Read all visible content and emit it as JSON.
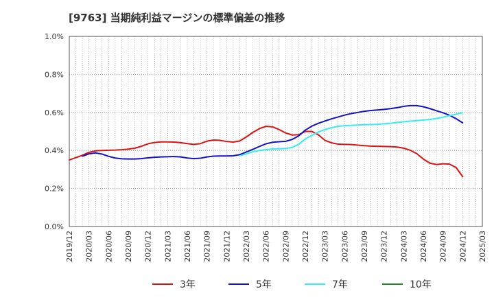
{
  "chart_data": {
    "type": "line",
    "title": "[9763]  当期純利益マージンの標準偏差の推移",
    "xlabel": "",
    "ylabel": "",
    "ylim": [
      0,
      1.0
    ],
    "y_ticks": [
      "0.0%",
      "0.2%",
      "0.4%",
      "0.6%",
      "0.8%",
      "1.0%"
    ],
    "y_tick_values": [
      0,
      0.2,
      0.4,
      0.6,
      0.8,
      1.0
    ],
    "x_ticks": [
      "2019/12",
      "2020/03",
      "2020/06",
      "2020/09",
      "2020/12",
      "2021/03",
      "2021/06",
      "2021/09",
      "2021/12",
      "2022/03",
      "2022/06",
      "2022/09",
      "2022/12",
      "2023/03",
      "2023/06",
      "2023/09",
      "2023/12",
      "2024/03",
      "2024/06",
      "2024/09",
      "2024/12",
      "2025/03"
    ],
    "grid": true,
    "legend_position": "bottom",
    "series": [
      {
        "name": "3年",
        "color": "#dd1111",
        "points": [
          [
            "2019/12",
            0.35
          ],
          [
            "2020/01",
            0.362
          ],
          [
            "2020/02",
            0.375
          ],
          [
            "2020/03",
            0.39
          ],
          [
            "2020/04",
            0.398
          ],
          [
            "2020/05",
            0.4
          ],
          [
            "2020/06",
            0.401
          ],
          [
            "2020/07",
            0.402
          ],
          [
            "2020/08",
            0.404
          ],
          [
            "2020/09",
            0.407
          ],
          [
            "2020/10",
            0.412
          ],
          [
            "2020/11",
            0.422
          ],
          [
            "2020/12",
            0.435
          ],
          [
            "2021/01",
            0.442
          ],
          [
            "2021/02",
            0.445
          ],
          [
            "2021/03",
            0.445
          ],
          [
            "2021/04",
            0.444
          ],
          [
            "2021/05",
            0.441
          ],
          [
            "2021/06",
            0.436
          ],
          [
            "2021/07",
            0.432
          ],
          [
            "2021/08",
            0.436
          ],
          [
            "2021/09",
            0.449
          ],
          [
            "2021/10",
            0.455
          ],
          [
            "2021/11",
            0.453
          ],
          [
            "2021/12",
            0.447
          ],
          [
            "2022/01",
            0.444
          ],
          [
            "2022/02",
            0.45
          ],
          [
            "2022/03",
            0.471
          ],
          [
            "2022/04",
            0.495
          ],
          [
            "2022/05",
            0.515
          ],
          [
            "2022/06",
            0.527
          ],
          [
            "2022/07",
            0.524
          ],
          [
            "2022/08",
            0.51
          ],
          [
            "2022/09",
            0.492
          ],
          [
            "2022/10",
            0.481
          ],
          [
            "2022/11",
            0.483
          ],
          [
            "2022/12",
            0.5
          ],
          [
            "2023/01",
            0.5
          ],
          [
            "2023/02",
            0.482
          ],
          [
            "2023/03",
            0.453
          ],
          [
            "2023/04",
            0.44
          ],
          [
            "2023/05",
            0.433
          ],
          [
            "2023/06",
            0.432
          ],
          [
            "2023/07",
            0.431
          ],
          [
            "2023/08",
            0.428
          ],
          [
            "2023/09",
            0.425
          ],
          [
            "2023/10",
            0.423
          ],
          [
            "2023/11",
            0.422
          ],
          [
            "2023/12",
            0.421
          ],
          [
            "2024/01",
            0.42
          ],
          [
            "2024/02",
            0.418
          ],
          [
            "2024/03",
            0.412
          ],
          [
            "2024/04",
            0.401
          ],
          [
            "2024/05",
            0.383
          ],
          [
            "2024/06",
            0.355
          ],
          [
            "2024/07",
            0.333
          ],
          [
            "2024/08",
            0.326
          ],
          [
            "2024/09",
            0.33
          ],
          [
            "2024/10",
            0.328
          ],
          [
            "2024/11",
            0.31
          ],
          [
            "2024/12",
            0.262
          ]
        ]
      },
      {
        "name": "5年",
        "color": "#1111cc",
        "points": [
          [
            "2020/02",
            0.37
          ],
          [
            "2020/03",
            0.382
          ],
          [
            "2020/04",
            0.387
          ],
          [
            "2020/05",
            0.381
          ],
          [
            "2020/06",
            0.369
          ],
          [
            "2020/07",
            0.36
          ],
          [
            "2020/08",
            0.356
          ],
          [
            "2020/09",
            0.355
          ],
          [
            "2020/10",
            0.355
          ],
          [
            "2020/11",
            0.357
          ],
          [
            "2020/12",
            0.361
          ],
          [
            "2021/01",
            0.364
          ],
          [
            "2021/02",
            0.366
          ],
          [
            "2021/03",
            0.367
          ],
          [
            "2021/04",
            0.368
          ],
          [
            "2021/05",
            0.366
          ],
          [
            "2021/06",
            0.36
          ],
          [
            "2021/07",
            0.357
          ],
          [
            "2021/08",
            0.359
          ],
          [
            "2021/09",
            0.366
          ],
          [
            "2021/10",
            0.37
          ],
          [
            "2021/11",
            0.371
          ],
          [
            "2021/12",
            0.371
          ],
          [
            "2022/01",
            0.372
          ],
          [
            "2022/02",
            0.378
          ],
          [
            "2022/03",
            0.392
          ],
          [
            "2022/04",
            0.406
          ],
          [
            "2022/05",
            0.421
          ],
          [
            "2022/06",
            0.435
          ],
          [
            "2022/07",
            0.443
          ],
          [
            "2022/08",
            0.446
          ],
          [
            "2022/09",
            0.448
          ],
          [
            "2022/10",
            0.458
          ],
          [
            "2022/11",
            0.477
          ],
          [
            "2022/12",
            0.507
          ],
          [
            "2023/01",
            0.528
          ],
          [
            "2023/02",
            0.543
          ],
          [
            "2023/03",
            0.555
          ],
          [
            "2023/04",
            0.566
          ],
          [
            "2023/05",
            0.576
          ],
          [
            "2023/06",
            0.586
          ],
          [
            "2023/07",
            0.594
          ],
          [
            "2023/08",
            0.6
          ],
          [
            "2023/09",
            0.606
          ],
          [
            "2023/10",
            0.61
          ],
          [
            "2023/11",
            0.613
          ],
          [
            "2023/12",
            0.616
          ],
          [
            "2024/01",
            0.62
          ],
          [
            "2024/02",
            0.625
          ],
          [
            "2024/03",
            0.632
          ],
          [
            "2024/04",
            0.636
          ],
          [
            "2024/05",
            0.636
          ],
          [
            "2024/06",
            0.63
          ],
          [
            "2024/07",
            0.62
          ],
          [
            "2024/08",
            0.609
          ],
          [
            "2024/09",
            0.598
          ],
          [
            "2024/10",
            0.585
          ],
          [
            "2024/11",
            0.567
          ],
          [
            "2024/12",
            0.545
          ]
        ]
      },
      {
        "name": "7年",
        "color": "#33eeee",
        "points": [
          [
            "2022/02",
            0.372
          ],
          [
            "2022/03",
            0.382
          ],
          [
            "2022/04",
            0.393
          ],
          [
            "2022/05",
            0.4
          ],
          [
            "2022/06",
            0.404
          ],
          [
            "2022/07",
            0.408
          ],
          [
            "2022/08",
            0.409
          ],
          [
            "2022/09",
            0.41
          ],
          [
            "2022/10",
            0.416
          ],
          [
            "2022/11",
            0.433
          ],
          [
            "2022/12",
            0.46
          ],
          [
            "2023/01",
            0.48
          ],
          [
            "2023/02",
            0.497
          ],
          [
            "2023/03",
            0.51
          ],
          [
            "2023/04",
            0.52
          ],
          [
            "2023/05",
            0.527
          ],
          [
            "2023/06",
            0.53
          ],
          [
            "2023/07",
            0.532
          ],
          [
            "2023/08",
            0.534
          ],
          [
            "2023/09",
            0.535
          ],
          [
            "2023/10",
            0.536
          ],
          [
            "2023/11",
            0.537
          ],
          [
            "2023/12",
            0.54
          ],
          [
            "2024/01",
            0.543
          ],
          [
            "2024/02",
            0.547
          ],
          [
            "2024/03",
            0.551
          ],
          [
            "2024/04",
            0.554
          ],
          [
            "2024/05",
            0.557
          ],
          [
            "2024/06",
            0.56
          ],
          [
            "2024/07",
            0.563
          ],
          [
            "2024/08",
            0.568
          ],
          [
            "2024/09",
            0.575
          ],
          [
            "2024/10",
            0.583
          ],
          [
            "2024/11",
            0.591
          ],
          [
            "2024/12",
            0.598
          ]
        ]
      },
      {
        "name": "10年",
        "color": "#228822",
        "points": []
      }
    ]
  }
}
